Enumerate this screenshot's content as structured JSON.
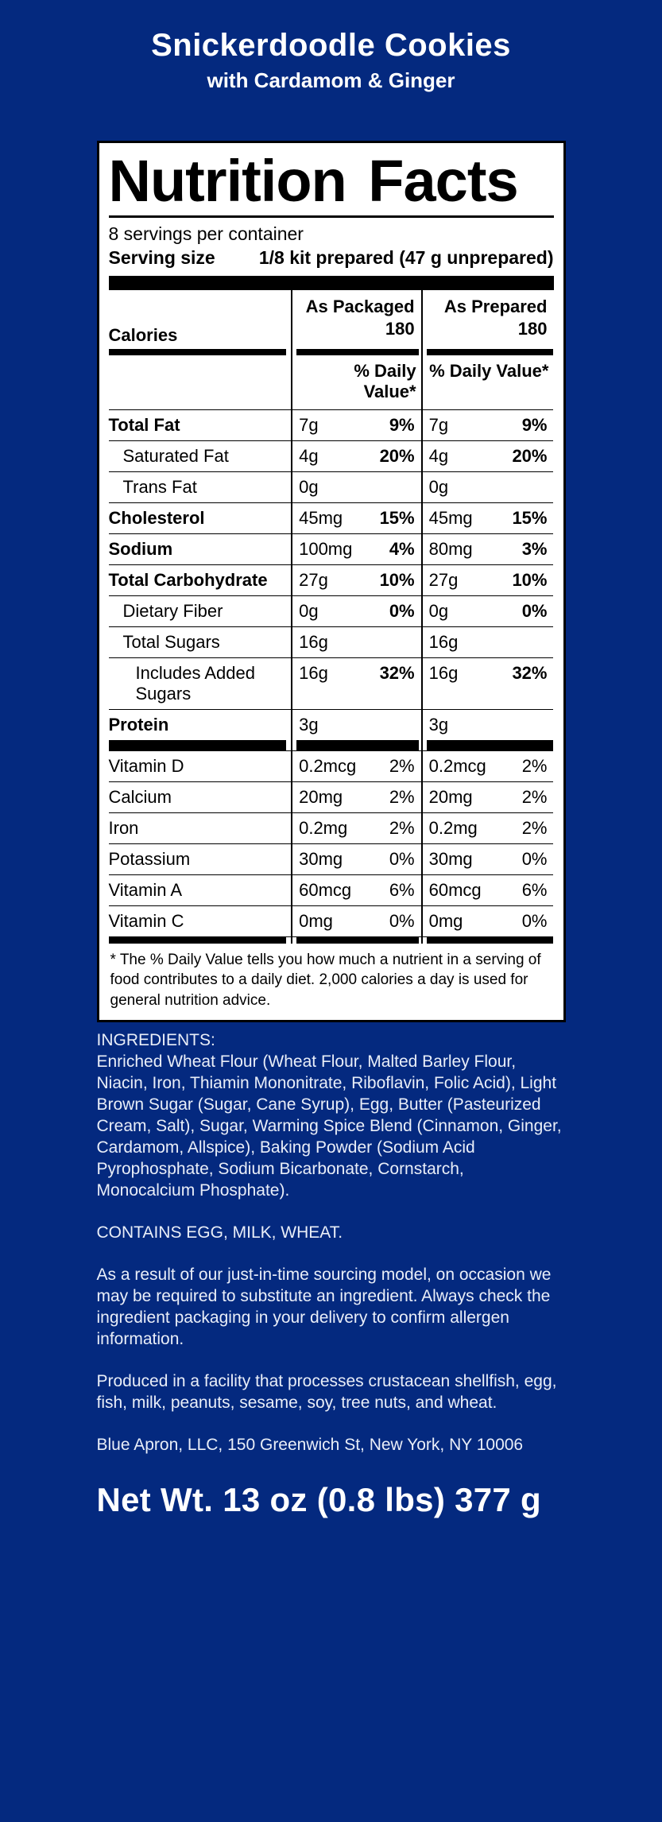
{
  "page": {
    "background_color": "#04297f",
    "title": "Snickerdoodle Cookies",
    "subtitle": "with Cardamom & Ginger",
    "net_weight": "Net Wt. 13 oz (0.8 lbs) 377 g"
  },
  "nutrition_label": {
    "title": "Nutrition Facts",
    "servings_per_container": "8 servings per container",
    "serving_size_label": "Serving size",
    "serving_size_value": "1/8 kit prepared (47 g unprepared)",
    "column_header_packaged": "As Packaged",
    "column_header_prepared": "As Prepared",
    "calories_label": "Calories",
    "calories_packaged": "180",
    "calories_prepared": "180",
    "daily_value_header": "% Daily Value*",
    "rows": [
      {
        "name": "Total Fat",
        "bold": true,
        "indent": 0,
        "packaged_amount": "7g",
        "packaged_dv": "9%",
        "prepared_amount": "7g",
        "prepared_dv": "9%"
      },
      {
        "name": "Saturated Fat",
        "bold": false,
        "indent": 1,
        "packaged_amount": "4g",
        "packaged_dv": "20%",
        "prepared_amount": "4g",
        "prepared_dv": "20%"
      },
      {
        "name": "Trans Fat",
        "bold": false,
        "indent": 1,
        "packaged_amount": "0g",
        "packaged_dv": "",
        "prepared_amount": "0g",
        "prepared_dv": ""
      },
      {
        "name": "Cholesterol",
        "bold": true,
        "indent": 0,
        "packaged_amount": "45mg",
        "packaged_dv": "15%",
        "prepared_amount": "45mg",
        "prepared_dv": "15%"
      },
      {
        "name": "Sodium",
        "bold": true,
        "indent": 0,
        "packaged_amount": "100mg",
        "packaged_dv": "4%",
        "prepared_amount": "80mg",
        "prepared_dv": "3%"
      },
      {
        "name": "Total Carbohydrate",
        "bold": true,
        "indent": 0,
        "packaged_amount": "27g",
        "packaged_dv": "10%",
        "prepared_amount": "27g",
        "prepared_dv": "10%"
      },
      {
        "name": "Dietary Fiber",
        "bold": false,
        "indent": 1,
        "packaged_amount": "0g",
        "packaged_dv": "0%",
        "prepared_amount": "0g",
        "prepared_dv": "0%"
      },
      {
        "name": "Total Sugars",
        "bold": false,
        "indent": 1,
        "packaged_amount": "16g",
        "packaged_dv": "",
        "prepared_amount": "16g",
        "prepared_dv": ""
      },
      {
        "name": "Includes Added Sugars",
        "bold": false,
        "indent": 2,
        "packaged_amount": "16g",
        "packaged_dv": "32%",
        "prepared_amount": "16g",
        "prepared_dv": "32%"
      },
      {
        "name": "Protein",
        "bold": true,
        "indent": 0,
        "packaged_amount": "3g",
        "packaged_dv": "",
        "prepared_amount": "3g",
        "prepared_dv": ""
      }
    ],
    "vitamin_rows": [
      {
        "name": "Vitamin D",
        "bold": false,
        "indent": 0,
        "packaged_amount": "0.2mcg",
        "packaged_dv": "2%",
        "prepared_amount": "0.2mcg",
        "prepared_dv": "2%"
      },
      {
        "name": "Calcium",
        "bold": false,
        "indent": 0,
        "packaged_amount": "20mg",
        "packaged_dv": "2%",
        "prepared_amount": "20mg",
        "prepared_dv": "2%"
      },
      {
        "name": "Iron",
        "bold": false,
        "indent": 0,
        "packaged_amount": "0.2mg",
        "packaged_dv": "2%",
        "prepared_amount": "0.2mg",
        "prepared_dv": "2%"
      },
      {
        "name": "Potassium",
        "bold": false,
        "indent": 0,
        "packaged_amount": "30mg",
        "packaged_dv": "0%",
        "prepared_amount": "30mg",
        "prepared_dv": "0%"
      },
      {
        "name": "Vitamin A",
        "bold": false,
        "indent": 0,
        "packaged_amount": "60mcg",
        "packaged_dv": "6%",
        "prepared_amount": "60mcg",
        "prepared_dv": "6%"
      },
      {
        "name": "Vitamin C",
        "bold": false,
        "indent": 0,
        "packaged_amount": "0mg",
        "packaged_dv": "0%",
        "prepared_amount": "0mg",
        "prepared_dv": "0%"
      }
    ],
    "footnote": "* The % Daily Value tells you how much a nutrient in a serving of food contributes to a daily diet. 2,000 calories a day is used for general nutrition advice."
  },
  "details": {
    "ingredients_heading": "INGREDIENTS:",
    "ingredients": "Enriched Wheat Flour (Wheat Flour, Malted Barley Flour, Niacin, Iron, Thiamin Mononitrate, Riboflavin, Folic Acid), Light Brown Sugar (Sugar, Cane Syrup), Egg, Butter (Pasteurized Cream, Salt), Sugar, Warming Spice Blend (Cinnamon, Ginger, Cardamom, Allspice), Baking Powder (Sodium Acid Pyrophosphate, Sodium Bicarbonate, Cornstarch, Monocalcium Phosphate).",
    "contains_statement": "CONTAINS EGG, MILK, WHEAT.",
    "substitution_note": "As a result of our just-in-time sourcing model, on occasion we may be required to substitute an ingredient. Always check the ingredient packaging in your delivery to confirm allergen information.",
    "facility_note": "Produced in a facility that processes crustacean shellfish, egg, fish, milk, peanuts, sesame, soy, tree nuts, and wheat.",
    "manufacturer_address": "Blue Apron, LLC, 150 Greenwich St, New York, NY 10006"
  }
}
